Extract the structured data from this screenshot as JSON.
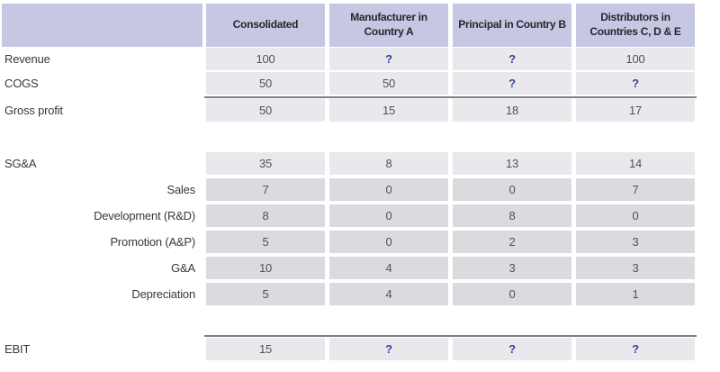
{
  "colors": {
    "header_bg": "#c6c7e2",
    "row_bg": "#e9e9ed",
    "subrow_bg": "#dbdbdf",
    "divider": "#7f8085",
    "unknown_value": "#3244a0",
    "text": "#39393d"
  },
  "table": {
    "columns": [
      "Consolidated",
      "Manufacturer in\nCountry A",
      "Principal in Country B",
      "Distributors in\nCountries C, D & E"
    ],
    "rows": [
      {
        "label": "Revenue",
        "type": "main",
        "values": [
          "100",
          "?",
          "?",
          "100"
        ]
      },
      {
        "label": "COGS",
        "type": "main",
        "values": [
          "50",
          "50",
          "?",
          "?"
        ]
      },
      {
        "label": "Gross profit",
        "type": "total",
        "values": [
          "50",
          "15",
          "18",
          "17"
        ]
      },
      {
        "label": "SG&A",
        "type": "main",
        "values": [
          "35",
          "8",
          "13",
          "14"
        ]
      },
      {
        "label": "Sales",
        "type": "sub",
        "values": [
          "7",
          "0",
          "0",
          "7"
        ]
      },
      {
        "label": "Development (R&D)",
        "type": "sub",
        "values": [
          "8",
          "0",
          "8",
          "0"
        ]
      },
      {
        "label": "Promotion (A&P)",
        "type": "sub",
        "values": [
          "5",
          "0",
          "2",
          "3"
        ]
      },
      {
        "label": "G&A",
        "type": "sub",
        "values": [
          "10",
          "4",
          "3",
          "3"
        ]
      },
      {
        "label": "Depreciation",
        "type": "sub",
        "values": [
          "5",
          "4",
          "0",
          "1"
        ]
      },
      {
        "label": "EBIT",
        "type": "total",
        "values": [
          "15",
          "?",
          "?",
          "?"
        ]
      }
    ]
  }
}
